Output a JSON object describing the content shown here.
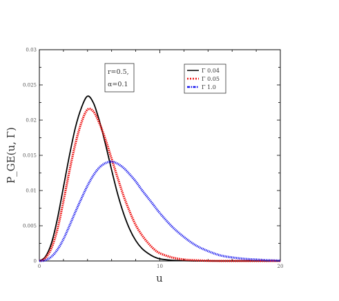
{
  "chart_data": {
    "type": "line",
    "title": "",
    "xlabel": "u",
    "ylabel": "P_GE(u, Γ)",
    "xlim": [
      0,
      20
    ],
    "ylim": [
      0,
      0.03
    ],
    "x_ticks": [
      {
        "value": 0,
        "label": "0"
      },
      {
        "value": 10,
        "label": "10"
      },
      {
        "value": 20,
        "label": "20"
      }
    ],
    "y_ticks": [
      {
        "value": 0,
        "label": "0"
      },
      {
        "value": 0.005,
        "label": "0.005"
      },
      {
        "value": 0.01,
        "label": "0.01"
      },
      {
        "value": 0.015,
        "label": "0.015"
      },
      {
        "value": 0.02,
        "label": "0.02"
      },
      {
        "value": 0.025,
        "label": "0.025"
      },
      {
        "value": 0.03,
        "label": "0.03"
      }
    ],
    "annotation": [
      "r=0.5,",
      "α=0.1"
    ],
    "legend_position": "top-right",
    "series": [
      {
        "name": "Γ 0.04",
        "color": "#000000",
        "style": "solid",
        "x": [
          0,
          0.5,
          1,
          1.5,
          2,
          2.5,
          3,
          3.5,
          4,
          4.5,
          5,
          5.5,
          6,
          6.5,
          7,
          7.5,
          8,
          8.5,
          9,
          9.5,
          10,
          11,
          12,
          13,
          14,
          15,
          16,
          17,
          18,
          19,
          20
        ],
        "y": [
          0,
          0.0006,
          0.0025,
          0.006,
          0.0105,
          0.015,
          0.019,
          0.0218,
          0.0234,
          0.0224,
          0.0198,
          0.0165,
          0.0129,
          0.0095,
          0.0067,
          0.0045,
          0.0029,
          0.0018,
          0.0011,
          0.0006,
          0.0003,
          0.0001,
          4e-05,
          0,
          0,
          0,
          0,
          0,
          0,
          0,
          0
        ]
      },
      {
        "name": "Γ 0.05",
        "color": "#ee1111",
        "style": "dotted",
        "x": [
          0,
          0.5,
          1,
          1.5,
          2,
          2.5,
          3,
          3.5,
          4,
          4.5,
          5,
          5.5,
          6,
          6.5,
          7,
          7.5,
          8,
          8.5,
          9,
          9.5,
          10,
          11,
          12,
          13,
          14,
          15,
          16,
          17,
          18,
          19,
          20
        ],
        "y": [
          0,
          0.0004,
          0.0018,
          0.0045,
          0.0085,
          0.0128,
          0.0167,
          0.0197,
          0.0215,
          0.0212,
          0.0195,
          0.0172,
          0.0145,
          0.0118,
          0.0092,
          0.007,
          0.0051,
          0.0037,
          0.0026,
          0.0017,
          0.0011,
          0.0005,
          0.0002,
          0.0001,
          3e-05,
          0,
          0,
          0,
          0,
          0,
          0
        ]
      },
      {
        "name": "Γ 1.0",
        "color": "#1111ee",
        "style": "dash-dot",
        "x": [
          0,
          0.5,
          1,
          1.5,
          2,
          2.5,
          3,
          3.5,
          4,
          4.5,
          5,
          5.5,
          6,
          6.5,
          7,
          7.5,
          8,
          8.5,
          9,
          9.5,
          10,
          11,
          12,
          13,
          14,
          15,
          16,
          17,
          18,
          19,
          20
        ],
        "y": [
          0,
          0.0001,
          0.0006,
          0.0016,
          0.0031,
          0.005,
          0.007,
          0.0089,
          0.0107,
          0.0122,
          0.0133,
          0.0139,
          0.0141,
          0.0138,
          0.0132,
          0.0123,
          0.0113,
          0.0101,
          0.009,
          0.0079,
          0.0068,
          0.0049,
          0.0034,
          0.0022,
          0.0014,
          0.0008,
          0.0005,
          0.0003,
          0.0002,
          0.0001,
          5e-05
        ]
      }
    ]
  }
}
